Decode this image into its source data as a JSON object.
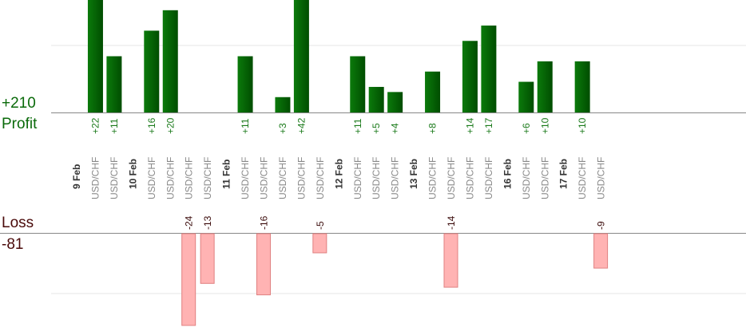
{
  "summary": {
    "profit_total": "+210",
    "profit_label": "Profit",
    "loss_label": "Loss",
    "loss_total": "-81"
  },
  "colors": {
    "profit_bar": "#0b7a0b",
    "profit_bar_dark": "#004d00",
    "profit_text": "#1a7a1a",
    "loss_bar": "#ffb3b3",
    "loss_bar_border": "#e08080",
    "loss_text": "#3a0a0a",
    "axis": "#888888",
    "grid": "#e6e6e6",
    "date_text": "#333333",
    "symbol_text": "#888888"
  },
  "chart_data": {
    "type": "bar",
    "description_axis": "trades by date",
    "profit_scale_max": 22,
    "loss_scale_max": 24,
    "entries": [
      {
        "kind": "date",
        "label": "9 Feb"
      },
      {
        "kind": "trade",
        "symbol": "USD/CHF",
        "value": 22,
        "label": "+22"
      },
      {
        "kind": "trade",
        "symbol": "USD/CHF",
        "value": 11,
        "label": "+11"
      },
      {
        "kind": "date",
        "label": "10 Feb"
      },
      {
        "kind": "trade",
        "symbol": "USD/CHF",
        "value": 16,
        "label": "+16"
      },
      {
        "kind": "trade",
        "symbol": "USD/CHF",
        "value": 20,
        "label": "+20"
      },
      {
        "kind": "trade",
        "symbol": "USD/CHF",
        "value": -24,
        "label": "-24"
      },
      {
        "kind": "trade",
        "symbol": "USD/CHF",
        "value": -13,
        "label": "-13"
      },
      {
        "kind": "date",
        "label": "11 Feb"
      },
      {
        "kind": "trade",
        "symbol": "USD/CHF",
        "value": 11,
        "label": "+11"
      },
      {
        "kind": "trade",
        "symbol": "USD/CHF",
        "value": -16,
        "label": "-16"
      },
      {
        "kind": "trade",
        "symbol": "USD/CHF",
        "value": 3,
        "label": "+3"
      },
      {
        "kind": "trade",
        "symbol": "USD/CHF",
        "value": 42,
        "label": "+42"
      },
      {
        "kind": "trade",
        "symbol": "USD/CHF",
        "value": -5,
        "label": "-5"
      },
      {
        "kind": "date",
        "label": "12 Feb"
      },
      {
        "kind": "trade",
        "symbol": "USD/CHF",
        "value": 11,
        "label": "+11"
      },
      {
        "kind": "trade",
        "symbol": "USD/CHF",
        "value": 5,
        "label": "+5"
      },
      {
        "kind": "trade",
        "symbol": "USD/CHF",
        "value": 4,
        "label": "+4"
      },
      {
        "kind": "date",
        "label": "13 Feb"
      },
      {
        "kind": "trade",
        "symbol": "USD/CHF",
        "value": 8,
        "label": "+8"
      },
      {
        "kind": "trade",
        "symbol": "USD/CHF",
        "value": -14,
        "label": "-14"
      },
      {
        "kind": "trade",
        "symbol": "USD/CHF",
        "value": 14,
        "label": "+14"
      },
      {
        "kind": "trade",
        "symbol": "USD/CHF",
        "value": 17,
        "label": "+17"
      },
      {
        "kind": "date",
        "label": "16 Feb"
      },
      {
        "kind": "trade",
        "symbol": "USD/CHF",
        "value": 6,
        "label": "+6"
      },
      {
        "kind": "trade",
        "symbol": "USD/CHF",
        "value": 10,
        "label": "+10"
      },
      {
        "kind": "date",
        "label": "17 Feb"
      },
      {
        "kind": "trade",
        "symbol": "USD/CHF",
        "value": 10,
        "label": "+10"
      },
      {
        "kind": "trade",
        "symbol": "USD/CHF",
        "value": -9,
        "label": "-9"
      }
    ]
  }
}
